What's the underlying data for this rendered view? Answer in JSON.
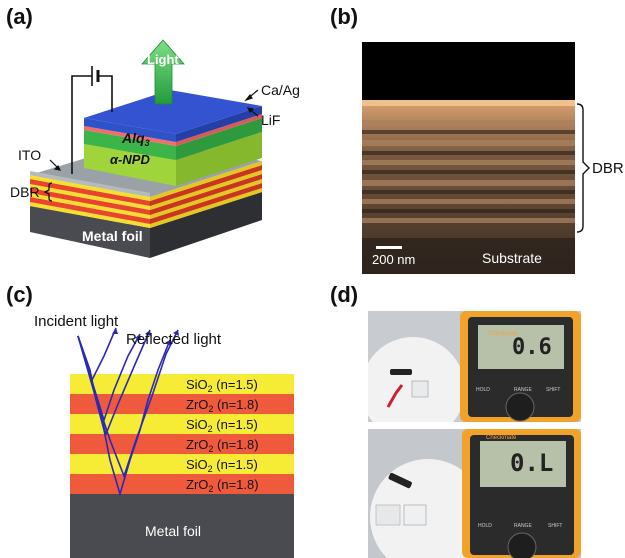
{
  "labels": {
    "a": "(a)",
    "b": "(b)",
    "c": "(c)",
    "d": "(d)"
  },
  "panel_a": {
    "light": "Light",
    "ca_ag": "Ca/Ag",
    "lif": "LiF",
    "alq3": "Alq",
    "alq3_sub": "3",
    "npd": "α-NPD",
    "ito": "ITO",
    "dbr": "DBR",
    "metal_foil": "Metal foil"
  },
  "panel_b": {
    "dbr": "DBR",
    "scale": "200 nm",
    "substrate": "Substrate"
  },
  "panel_c": {
    "incident": "Incident light",
    "reflected": "Reflected light",
    "metal_foil": "Metal foil",
    "layers": [
      {
        "formula": "SiO",
        "sub": "2",
        "index": " (n=1.5)",
        "color": "#f6ec36"
      },
      {
        "formula": "ZrO",
        "sub": "2",
        "index": " (n=1.8)",
        "color": "#ef5a3c"
      },
      {
        "formula": "SiO",
        "sub": "2",
        "index": " (n=1.5)",
        "color": "#f6ec36"
      },
      {
        "formula": "ZrO",
        "sub": "2",
        "index": " (n=1.8)",
        "color": "#ef5a3c"
      },
      {
        "formula": "SiO",
        "sub": "2",
        "index": " (n=1.5)",
        "color": "#f6ec36"
      },
      {
        "formula": "ZrO",
        "sub": "2",
        "index": " (n=1.8)",
        "color": "#ef5a3c"
      }
    ]
  },
  "panel_d": {
    "reading1": "0.6",
    "reading2": "0.L"
  }
}
